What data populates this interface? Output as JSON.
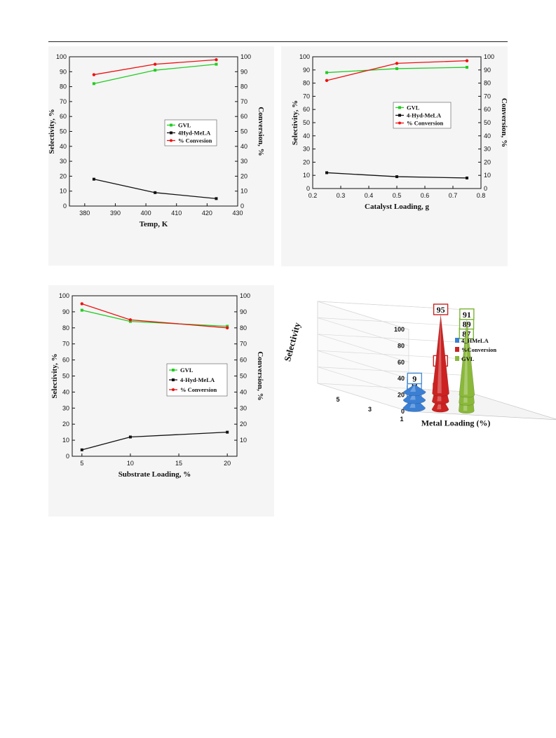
{
  "chart_data": [
    {
      "type": "line",
      "xlabel": "Temp, K",
      "ylabel": "Selectivity, %",
      "y2label": "Conversion, %",
      "xlim": [
        375,
        430
      ],
      "xticks": [
        380,
        390,
        400,
        410,
        420,
        430
      ],
      "ylim": [
        0,
        100
      ],
      "yticks": [
        0,
        10,
        20,
        30,
        40,
        50,
        60,
        70,
        80,
        90,
        100
      ],
      "y2lim": [
        0,
        100
      ],
      "y2ticks": [
        0,
        10,
        20,
        30,
        40,
        50,
        60,
        70,
        80,
        90,
        100
      ],
      "legend_position": "center-right",
      "series": [
        {
          "name": "GVL",
          "color": "#22cc22",
          "marker": "square",
          "x": [
            383,
            403,
            423
          ],
          "values": [
            82,
            91,
            95
          ]
        },
        {
          "name": "4Hyd-MeLA",
          "color": "#111111",
          "marker": "square",
          "x": [
            383,
            403,
            423
          ],
          "values": [
            18,
            9,
            5
          ]
        },
        {
          "name": "% Convesion",
          "color": "#ee1111",
          "marker": "circle",
          "x": [
            383,
            403,
            423
          ],
          "values": [
            88,
            95,
            98
          ]
        }
      ]
    },
    {
      "type": "line",
      "xlabel": "Catalyst Loading, g",
      "ylabel": "Selectivity, %",
      "y2label": "Conversion, %",
      "xlim": [
        0.2,
        0.8
      ],
      "xticks": [
        "0.2",
        "0.3",
        "0.4",
        "0.5",
        "0.6",
        "0.7",
        "0.8"
      ],
      "ylim": [
        0,
        100
      ],
      "yticks": [
        0,
        10,
        20,
        30,
        40,
        50,
        60,
        70,
        80,
        90,
        100
      ],
      "y2lim": [
        0,
        100
      ],
      "y2ticks": [
        0,
        10,
        20,
        30,
        40,
        50,
        60,
        70,
        80,
        90,
        100
      ],
      "legend_position": "center-right",
      "series": [
        {
          "name": "GVL",
          "color": "#22cc22",
          "marker": "square",
          "x": [
            0.25,
            0.5,
            0.75
          ],
          "values": [
            88,
            91,
            92
          ]
        },
        {
          "name": "4-Hyd-MeLA",
          "color": "#111111",
          "marker": "square",
          "x": [
            0.25,
            0.5,
            0.75
          ],
          "values": [
            12,
            9,
            8
          ]
        },
        {
          "name": "% Conversion",
          "color": "#ee1111",
          "marker": "circle",
          "x": [
            0.25,
            0.5,
            0.75
          ],
          "values": [
            82,
            95,
            97
          ]
        }
      ]
    },
    {
      "type": "line",
      "xlabel": "Substrate Loading, %",
      "ylabel": "Selectivity, %",
      "y2label": "Conversion, %",
      "xlim": [
        4,
        21
      ],
      "xticks": [
        5,
        10,
        15,
        20
      ],
      "ylim": [
        0,
        100
      ],
      "yticks": [
        0,
        10,
        20,
        30,
        40,
        50,
        60,
        70,
        80,
        90,
        100
      ],
      "y2lim": [
        0,
        100
      ],
      "y2ticks": [
        10,
        20,
        30,
        40,
        50,
        60,
        70,
        80,
        90,
        100
      ],
      "legend_position": "center-right",
      "series": [
        {
          "name": "GVL",
          "color": "#22cc22",
          "marker": "square",
          "x": [
            5,
            10,
            20
          ],
          "values": [
            91,
            84,
            81
          ]
        },
        {
          "name": "4-Hyd-MeLA",
          "color": "#111111",
          "marker": "square",
          "x": [
            5,
            10,
            20
          ],
          "values": [
            4,
            12,
            15
          ]
        },
        {
          "name": "% Conversion",
          "color": "#ee1111",
          "marker": "circle",
          "x": [
            5,
            10,
            20
          ],
          "values": [
            95,
            85,
            80
          ]
        }
      ]
    },
    {
      "type": "bar",
      "style": "3d-cone",
      "xlabel": "Metal Loading (%)",
      "ylabel": "Selectivity",
      "categories": [
        "1",
        "3",
        "5"
      ],
      "ylim": [
        0,
        100
      ],
      "yticks": [
        0,
        20,
        40,
        60,
        80,
        100
      ],
      "legend_position": "right",
      "series": [
        {
          "name": "4_HMeLA",
          "color": "#3a7fd4",
          "label_color": "#4a8fd8",
          "values": [
            13,
            11,
            9
          ]
        },
        {
          "name": "%Conversion",
          "color": "#cc2222",
          "label_color": "#cc2222",
          "values": [
            18,
            42,
            95
          ]
        },
        {
          "name": "GVL",
          "color": "#8ab83a",
          "label_color": "#79b530",
          "values": [
            87,
            89,
            91
          ]
        }
      ]
    }
  ]
}
